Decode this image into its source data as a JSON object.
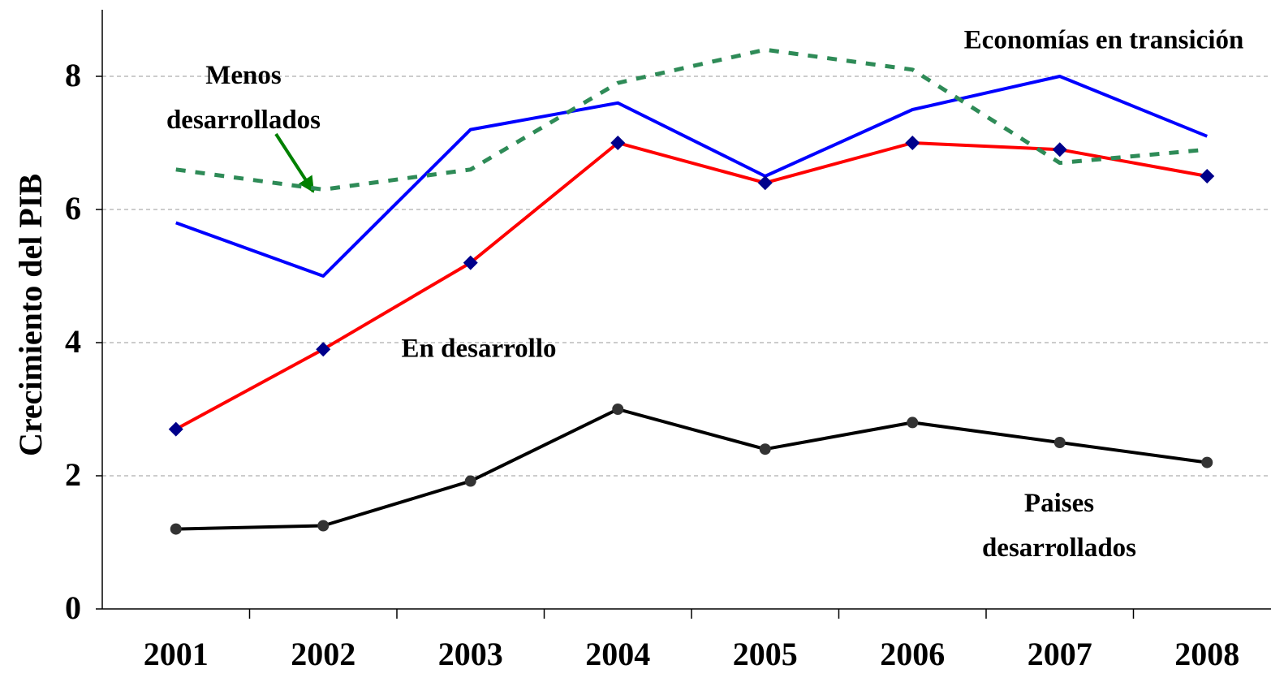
{
  "chart_data": {
    "type": "line",
    "y_label": "Crecimiento del PIB",
    "categories": [
      "2001",
      "2002",
      "2003",
      "2004",
      "2005",
      "2006",
      "2007",
      "2008"
    ],
    "series": [
      {
        "name": "Economías en transición",
        "color": "#0000ff",
        "values": [
          5.8,
          5.0,
          7.2,
          7.6,
          6.5,
          7.5,
          8.0,
          7.1
        ]
      },
      {
        "name": "En desarrollo",
        "color": "#ff0000",
        "marker": "diamond",
        "marker_color": "#00008b",
        "values": [
          2.7,
          3.9,
          5.2,
          7.0,
          6.4,
          7.0,
          6.9,
          6.5
        ]
      },
      {
        "name": "Paises desarrollados",
        "color": "#000000",
        "marker": "circle",
        "marker_color": "#333333",
        "values": [
          1.2,
          1.25,
          1.92,
          3.0,
          2.4,
          2.8,
          2.5,
          2.2
        ]
      },
      {
        "name": "Menos desarrollados",
        "color": "#2e8b57",
        "dashed": true,
        "values": [
          6.6,
          6.3,
          6.6,
          7.9,
          8.4,
          8.1,
          6.7,
          6.9
        ]
      }
    ],
    "ylim": [
      0,
      9
    ],
    "yticks": [
      0,
      2,
      4,
      6,
      8
    ],
    "grid": true
  }
}
